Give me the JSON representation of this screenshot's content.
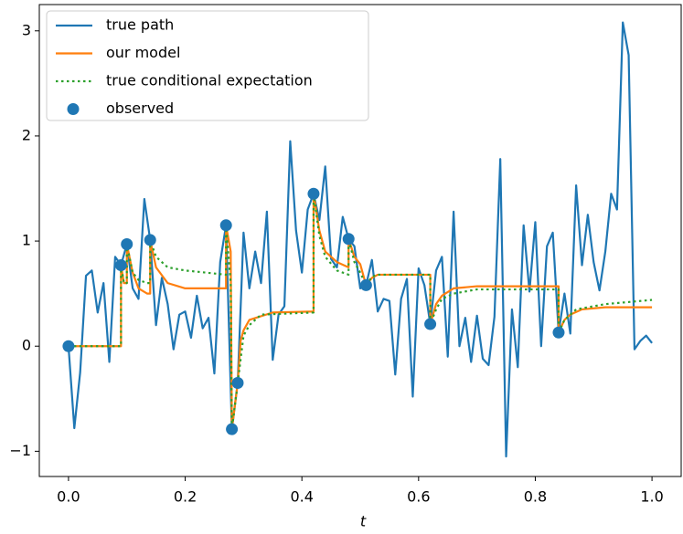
{
  "chart_data": {
    "type": "line",
    "xlabel": "t",
    "xlim": [
      -0.05,
      1.05
    ],
    "ylim": [
      -1.24,
      3.25
    ],
    "xticks": [
      {
        "value": 0,
        "label": "0.0"
      },
      {
        "value": 0.2,
        "label": "0.2"
      },
      {
        "value": 0.4,
        "label": "0.4"
      },
      {
        "value": 0.6,
        "label": "0.6"
      },
      {
        "value": 0.8,
        "label": "0.8"
      },
      {
        "value": 1,
        "label": "1.0"
      }
    ],
    "yticks": [
      {
        "value": -1,
        "label": "−1"
      },
      0,
      1,
      2,
      3
    ],
    "legend": "upper-left",
    "series": [
      {
        "name": "true path",
        "color": "#1f77b4",
        "style": "solid",
        "x": [
          0,
          0.01,
          0.02,
          0.03,
          0.04,
          0.05,
          0.06,
          0.07,
          0.08,
          0.09,
          0.1,
          0.11,
          0.12,
          0.13,
          0.14,
          0.15,
          0.16,
          0.17,
          0.18,
          0.19,
          0.2,
          0.21,
          0.22,
          0.23,
          0.24,
          0.25,
          0.26,
          0.27,
          0.28,
          0.29,
          0.3,
          0.31,
          0.32,
          0.33,
          0.34,
          0.35,
          0.36,
          0.37,
          0.38,
          0.39,
          0.4,
          0.41,
          0.42,
          0.43,
          0.44,
          0.45,
          0.46,
          0.47,
          0.48,
          0.49,
          0.5,
          0.51,
          0.52,
          0.53,
          0.54,
          0.55,
          0.56,
          0.57,
          0.58,
          0.59,
          0.6,
          0.61,
          0.62,
          0.63,
          0.64,
          0.65,
          0.66,
          0.67,
          0.68,
          0.69,
          0.7,
          0.71,
          0.72,
          0.73,
          0.74,
          0.75,
          0.76,
          0.77,
          0.78,
          0.79,
          0.8,
          0.81,
          0.82,
          0.83,
          0.84,
          0.85,
          0.86,
          0.87,
          0.88,
          0.89,
          0.9,
          0.91,
          0.92,
          0.93,
          0.94,
          0.95,
          0.96,
          0.97,
          0.98,
          0.99,
          1
        ],
        "values": [
          0,
          -0.78,
          -0.25,
          0.67,
          0.72,
          0.32,
          0.6,
          -0.15,
          0.85,
          0.77,
          0.97,
          0.55,
          0.45,
          1.4,
          1.01,
          0.2,
          0.65,
          0.4,
          -0.03,
          0.3,
          0.33,
          0.08,
          0.48,
          0.17,
          0.27,
          -0.26,
          0.8,
          1.15,
          -0.79,
          -0.35,
          1.08,
          0.55,
          0.9,
          0.6,
          1.28,
          -0.13,
          0.3,
          0.38,
          1.95,
          1.1,
          0.7,
          1.3,
          1.45,
          1.2,
          1.71,
          0.83,
          0.75,
          1.23,
          1.02,
          0.95,
          0.55,
          0.58,
          0.82,
          0.33,
          0.45,
          0.43,
          -0.27,
          0.45,
          0.64,
          -0.48,
          0.74,
          0.58,
          0.21,
          0.72,
          0.85,
          -0.1,
          1.28,
          0,
          0.27,
          -0.15,
          0.29,
          -0.12,
          -0.18,
          0.28,
          1.78,
          -1.05,
          0.35,
          -0.2,
          1.15,
          0.52,
          1.18,
          0,
          0.95,
          1.08,
          0.13,
          0.5,
          0.12,
          1.53,
          0.77,
          1.25,
          0.8,
          0.53,
          0.9,
          1.45,
          1.3,
          3.08,
          2.77,
          -0.03,
          0.05,
          0.1,
          0.03
        ]
      },
      {
        "name": "our model",
        "color": "#ff7f0e",
        "style": "solid",
        "x": [
          0,
          0.09,
          0.09,
          0.095,
          0.1,
          0.1,
          0.11,
          0.12,
          0.135,
          0.14,
          0.14,
          0.15,
          0.17,
          0.2,
          0.27,
          0.27,
          0.278,
          0.28,
          0.29,
          0.295,
          0.3,
          0.31,
          0.35,
          0.42,
          0.42,
          0.43,
          0.44,
          0.46,
          0.48,
          0.48,
          0.49,
          0.5,
          0.51,
          0.52,
          0.53,
          0.62,
          0.62,
          0.63,
          0.64,
          0.66,
          0.7,
          0.84,
          0.84,
          0.85,
          0.86,
          0.88,
          0.92,
          1
        ],
        "values": [
          0,
          0,
          0.77,
          0.6,
          0.6,
          0.97,
          0.7,
          0.55,
          0.5,
          0.5,
          1.01,
          0.75,
          0.6,
          0.55,
          0.55,
          1.15,
          0.9,
          -0.79,
          -0.35,
          0.05,
          0.15,
          0.25,
          0.32,
          0.33,
          1.45,
          1.1,
          0.9,
          0.8,
          0.75,
          1.02,
          0.85,
          0.78,
          0.58,
          0.65,
          0.68,
          0.68,
          0.21,
          0.4,
          0.48,
          0.55,
          0.57,
          0.57,
          0.13,
          0.25,
          0.3,
          0.35,
          0.37,
          0.37
        ]
      },
      {
        "name": "true conditional expectation",
        "color": "#2ca02c",
        "style": "dotted",
        "x": [
          0,
          0.09,
          0.09,
          0.095,
          0.1,
          0.1,
          0.11,
          0.12,
          0.135,
          0.14,
          0.14,
          0.15,
          0.17,
          0.2,
          0.27,
          0.27,
          0.278,
          0.28,
          0.29,
          0.3,
          0.31,
          0.33,
          0.42,
          0.42,
          0.43,
          0.44,
          0.46,
          0.48,
          0.48,
          0.49,
          0.5,
          0.51,
          0.52,
          0.53,
          0.62,
          0.62,
          0.63,
          0.64,
          0.66,
          0.7,
          0.84,
          0.84,
          0.85,
          0.87,
          0.92,
          1
        ],
        "values": [
          0,
          0,
          0.77,
          0.6,
          0.6,
          0.97,
          0.7,
          0.63,
          0.6,
          0.6,
          1.01,
          0.85,
          0.75,
          0.72,
          0.68,
          1.15,
          0.6,
          -0.79,
          -0.35,
          0.1,
          0.2,
          0.3,
          0.32,
          1.45,
          1.05,
          0.85,
          0.72,
          0.68,
          1.02,
          0.8,
          0.7,
          0.58,
          0.66,
          0.68,
          0.68,
          0.21,
          0.35,
          0.45,
          0.5,
          0.54,
          0.54,
          0.13,
          0.25,
          0.35,
          0.4,
          0.44
        ]
      },
      {
        "name": "observed",
        "color": "#1f77b4",
        "style": "markers",
        "x": [
          0,
          0.09,
          0.1,
          0.14,
          0.27,
          0.28,
          0.29,
          0.42,
          0.48,
          0.51,
          0.62,
          0.84
        ],
        "values": [
          0,
          0.77,
          0.97,
          1.01,
          1.15,
          -0.79,
          -0.35,
          1.45,
          1.02,
          0.58,
          0.21,
          0.13
        ]
      }
    ]
  }
}
